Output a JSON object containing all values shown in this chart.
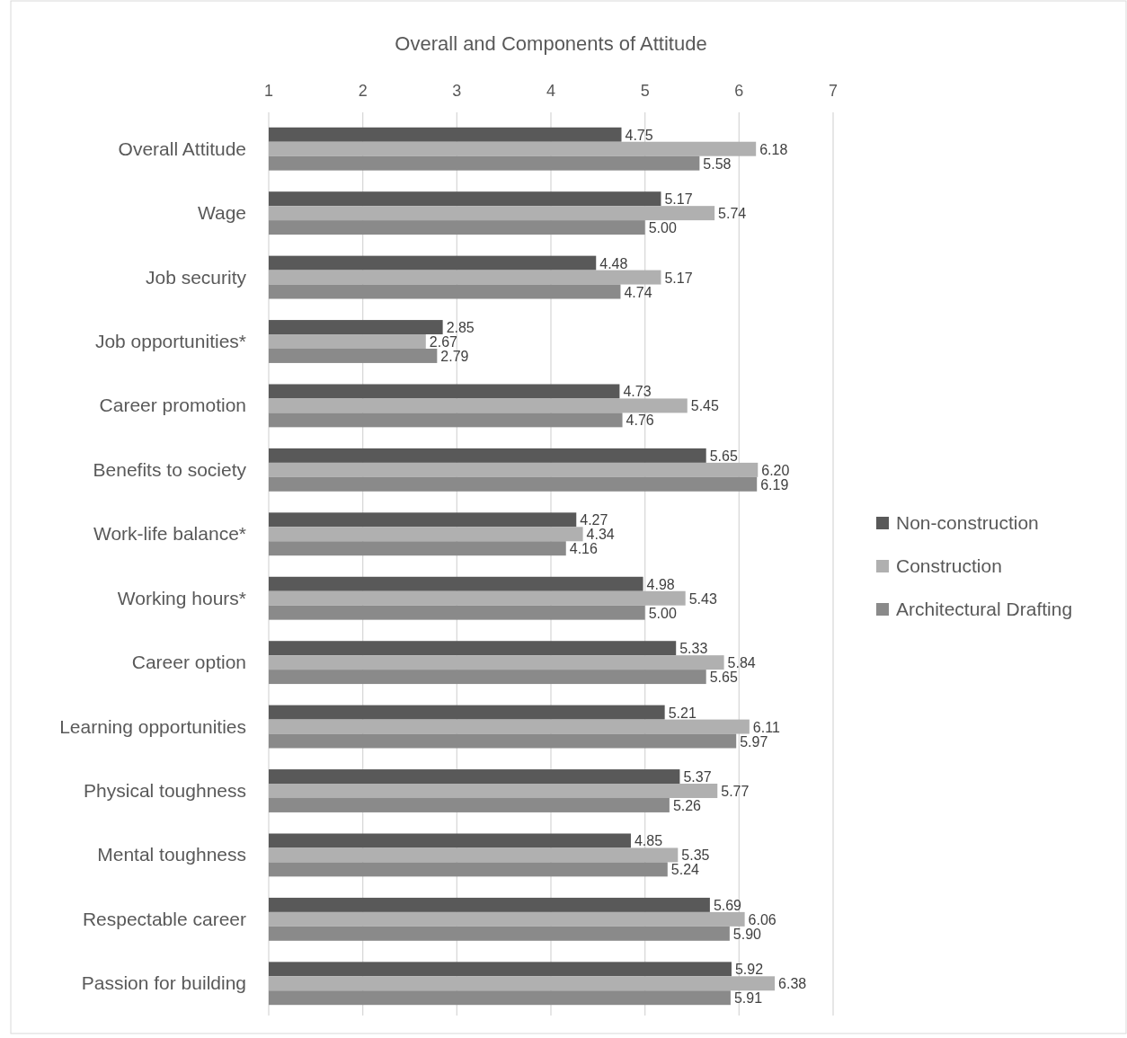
{
  "chart_data": {
    "type": "bar",
    "orientation": "horizontal",
    "title": "Overall and Components of Attitude",
    "categories": [
      "Overall Attitude",
      "Wage",
      "Job security",
      "Job opportunities*",
      "Career promotion",
      "Benefits to society",
      "Work-life balance*",
      "Working hours*",
      "Career option",
      "Learning opportunities",
      "Physical toughness",
      "Mental toughness",
      "Respectable career",
      "Passion for building"
    ],
    "series": [
      {
        "name": "Non-construction",
        "color": "#595959",
        "values": [
          4.75,
          5.17,
          4.48,
          2.85,
          4.73,
          5.65,
          4.27,
          4.98,
          5.33,
          5.21,
          5.37,
          4.85,
          5.69,
          5.92
        ],
        "value_labels": [
          "4.75",
          "5.17",
          "4.48",
          "2.85",
          "4.73",
          "5.65",
          "4.27",
          "4.98",
          "5.33",
          "5.21",
          "5.37",
          "4.85",
          "5.69",
          "5.92"
        ]
      },
      {
        "name": "Construction",
        "color": "#b0b0b0",
        "values": [
          6.18,
          5.74,
          5.17,
          2.67,
          5.45,
          6.2,
          4.34,
          5.43,
          5.84,
          6.11,
          5.77,
          5.35,
          6.06,
          6.38
        ],
        "value_labels": [
          "6.18",
          "5.74",
          "5.17",
          "2.67",
          "5.45",
          "6.20",
          "4.34",
          "5.43",
          "5.84",
          "6.11",
          "5.77",
          "5.35",
          "6.06",
          "6.38"
        ]
      },
      {
        "name": "Architectural Drafting",
        "color": "#8a8a8a",
        "values": [
          5.58,
          5.0,
          4.74,
          2.79,
          4.76,
          6.19,
          4.16,
          5.0,
          5.65,
          5.97,
          5.26,
          5.24,
          5.9,
          5.91
        ],
        "value_labels": [
          "5.58",
          "5.00",
          "4.74",
          "2.79",
          "4.76",
          "6.19",
          "4.16",
          "5.00",
          "5.65",
          "5.97",
          "5.26",
          "5.24",
          "5.90",
          "5.91"
        ]
      }
    ],
    "xlim": [
      1,
      7
    ],
    "xticks": [
      1,
      2,
      3,
      4,
      5,
      6,
      7
    ],
    "grid": "x",
    "legend": "right"
  }
}
